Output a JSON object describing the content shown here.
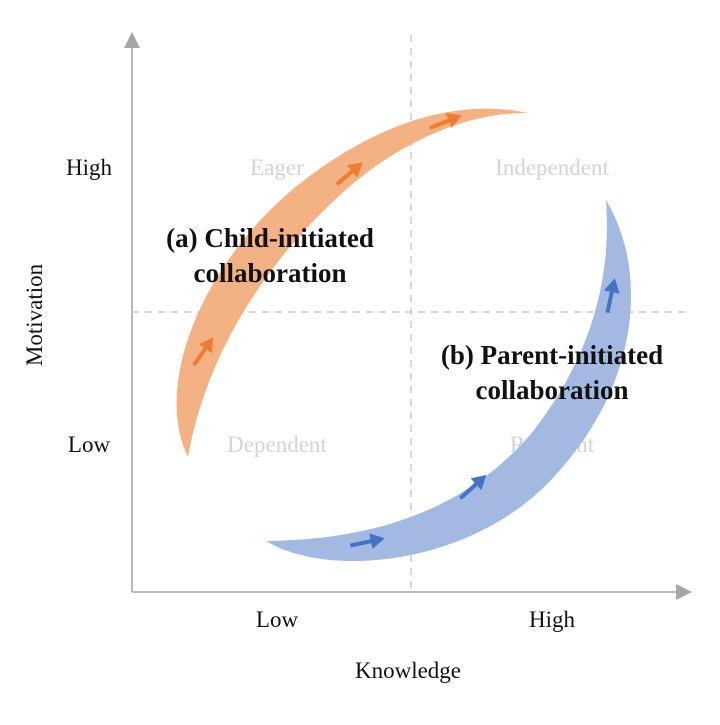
{
  "axes": {
    "x_label": "Knowledge",
    "y_label": "Motivation",
    "x_ticks": [
      "Low",
      "High"
    ],
    "y_ticks": [
      "High",
      "Low"
    ]
  },
  "quadrants": {
    "top_left": "Eager",
    "top_right": "Independent",
    "bottom_left": "Dependent",
    "bottom_right": "Resistant"
  },
  "flows": {
    "child": {
      "line1": "(a) Child-initiated",
      "line2": "collaboration",
      "band_color": "#f4b183",
      "arrow_color": "#ed7d31"
    },
    "parent": {
      "line1": "(b) Parent-initiated",
      "line2": "collaboration",
      "band_color": "#a4b9e2",
      "arrow_color": "#4472c4"
    }
  },
  "colors": {
    "axis": "#a6a6a6",
    "divider": "#c8c8c8",
    "quadrant_text": "#d4d4d4"
  }
}
